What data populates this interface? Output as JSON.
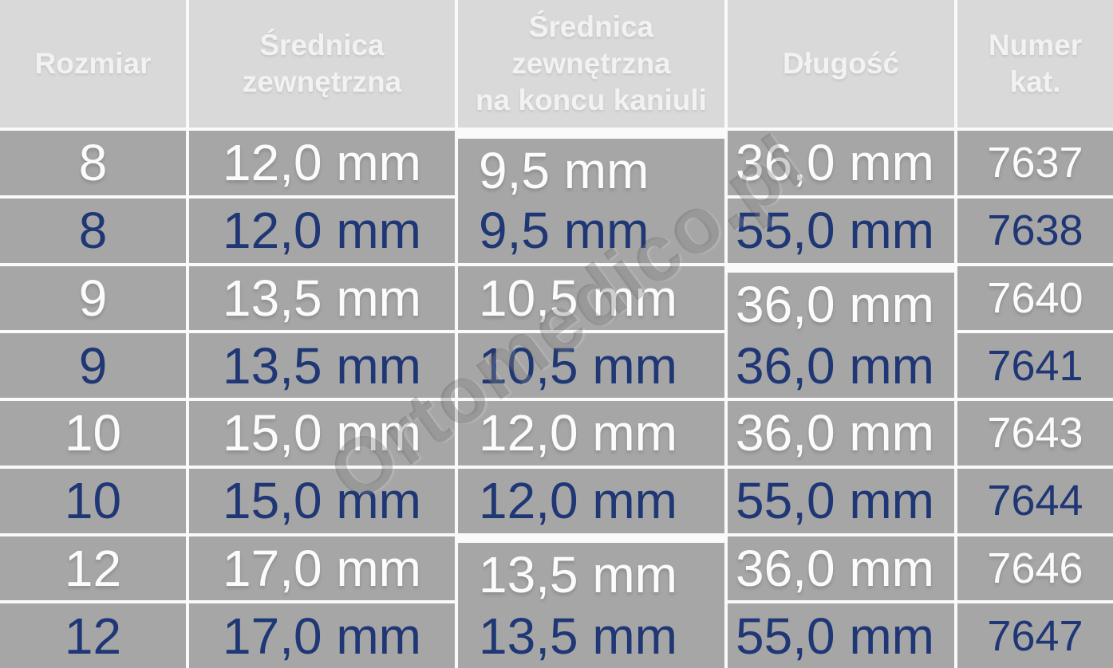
{
  "table": {
    "headers": [
      "Rozmiar",
      "Średnica\nzewnętrzna",
      "Średnica\nzewnętrzna\nna koncu kaniuli",
      "Długość",
      "Numer\nkat."
    ],
    "rows": [
      {
        "size": "8",
        "outer": "12,0 mm",
        "tip": "9,5 mm",
        "length": "36,0 mm",
        "cat": "7637"
      },
      {
        "size": "8",
        "outer": "12,0 mm",
        "tip": "9,5 mm",
        "length": "55,0 mm",
        "cat": "7638"
      },
      {
        "size": "9",
        "outer": "13,5 mm",
        "tip": "10,5 mm",
        "length": "36,0 mm",
        "cat": "7640"
      },
      {
        "size": "9",
        "outer": "13,5 mm",
        "tip": "10,5 mm",
        "length": "36,0 mm",
        "cat": "7641"
      },
      {
        "size": "10",
        "outer": "15,0 mm",
        "tip": "12,0 mm",
        "length": "36,0 mm",
        "cat": "7643"
      },
      {
        "size": "10",
        "outer": "15,0 mm",
        "tip": "12,0 mm",
        "length": "55,0 mm",
        "cat": "7644"
      },
      {
        "size": "12",
        "outer": "17,0 mm",
        "tip": "13,5 mm",
        "length": "36,0 mm",
        "cat": "7646"
      },
      {
        "size": "12",
        "outer": "17,0 mm",
        "tip": "13,5 mm",
        "length": "55,0 mm",
        "cat": "7647"
      }
    ]
  },
  "watermark": {
    "text": "Ortomedico.pl"
  },
  "colors": {
    "header_bg": "#d9d9d9",
    "body_bg": "#a6a6a6",
    "light_text": "#fbfbfb",
    "navy_text": "#1f3775",
    "grid_line": "#fafafa"
  }
}
